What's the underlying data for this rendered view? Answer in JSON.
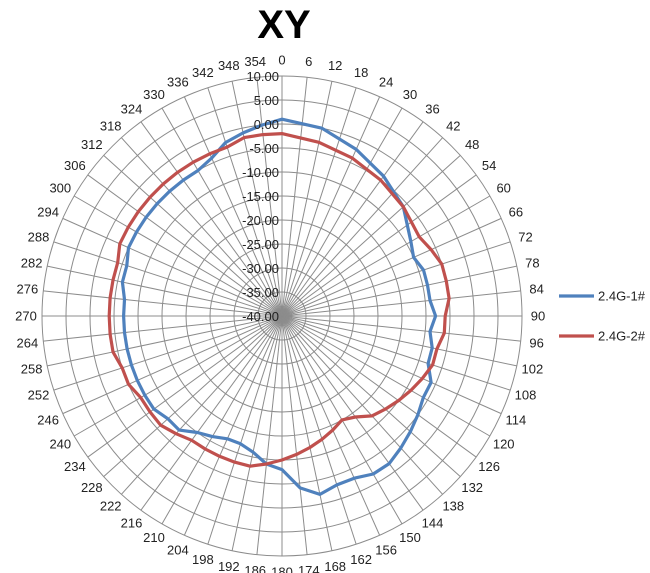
{
  "chart_data": {
    "type": "radar",
    "title": "XY",
    "angle_labels": [
      "0",
      "6",
      "12",
      "18",
      "24",
      "30",
      "36",
      "42",
      "48",
      "54",
      "60",
      "66",
      "72",
      "78",
      "84",
      "90",
      "96",
      "102",
      "108",
      "114",
      "120",
      "126",
      "132",
      "138",
      "144",
      "150",
      "156",
      "162",
      "168",
      "174",
      "180",
      "186",
      "192",
      "198",
      "204",
      "210",
      "216",
      "222",
      "228",
      "234",
      "240",
      "246",
      "252",
      "258",
      "264",
      "270",
      "276",
      "282",
      "288",
      "294",
      "300",
      "306",
      "312",
      "318",
      "324",
      "330",
      "336",
      "342",
      "348",
      "354"
    ],
    "radial_ticks": [
      "10.00",
      "5.00",
      "0.00",
      "-5.00",
      "-10.00",
      "-15.00",
      "-20.00",
      "-25.00",
      "-30.00",
      "-35.00",
      "-40.00"
    ],
    "rlim": [
      -40,
      10
    ],
    "legend_position": "right",
    "series": [
      {
        "name": "2.4G-1#",
        "color": "#4f81bd",
        "angles": [
          0,
          12,
          24,
          36,
          48,
          60,
          66,
          72,
          78,
          84,
          90,
          96,
          102,
          108,
          114,
          120,
          126,
          132,
          138,
          144,
          150,
          156,
          162,
          168,
          174,
          180,
          186,
          192,
          198,
          204,
          210,
          216,
          222,
          228,
          234,
          240,
          246,
          252,
          258,
          264,
          270,
          276,
          282,
          288,
          294,
          300,
          306,
          312,
          318,
          324,
          330,
          336,
          342,
          348,
          354
        ],
        "values": [
          1,
          0,
          -2,
          -4,
          -6,
          -9,
          -10,
          -9,
          -9,
          -9,
          -8,
          -9,
          -8,
          -8,
          -6,
          -6,
          -5,
          -4,
          -3,
          -2,
          -2,
          -3,
          -3,
          -2,
          -4,
          -8,
          -9,
          -11,
          -12,
          -12,
          -11,
          -10,
          -8,
          -8,
          -7,
          -7,
          -7,
          -7,
          -7,
          -7,
          -7,
          -7,
          -6,
          -6,
          -5,
          -5,
          -5,
          -5,
          -5,
          -5,
          -5,
          -4,
          -2,
          -1,
          0
        ]
      },
      {
        "name": "2.4G-2#",
        "color": "#c0504d",
        "angles": [
          0,
          12,
          24,
          36,
          48,
          60,
          66,
          72,
          78,
          84,
          90,
          96,
          102,
          108,
          114,
          120,
          126,
          132,
          138,
          144,
          150,
          156,
          162,
          168,
          174,
          180,
          186,
          192,
          198,
          204,
          210,
          216,
          222,
          228,
          234,
          240,
          246,
          252,
          258,
          264,
          270,
          276,
          282,
          288,
          294,
          300,
          306,
          312,
          318,
          324,
          330,
          336,
          342,
          348,
          354
        ],
        "values": [
          -2,
          -3,
          -4,
          -5,
          -6,
          -7,
          -6,
          -5,
          -5,
          -5,
          -6,
          -6,
          -7,
          -7,
          -8,
          -9,
          -10,
          -11,
          -12,
          -14,
          -15,
          -14,
          -13,
          -12,
          -11,
          -10,
          -9,
          -8,
          -8,
          -8,
          -8,
          -8,
          -7,
          -6,
          -6,
          -6,
          -5,
          -5,
          -4,
          -4,
          -4,
          -4,
          -4,
          -4,
          -3,
          -3,
          -3,
          -3,
          -3,
          -3,
          -3,
          -3,
          -3,
          -2,
          -2
        ]
      }
    ]
  }
}
